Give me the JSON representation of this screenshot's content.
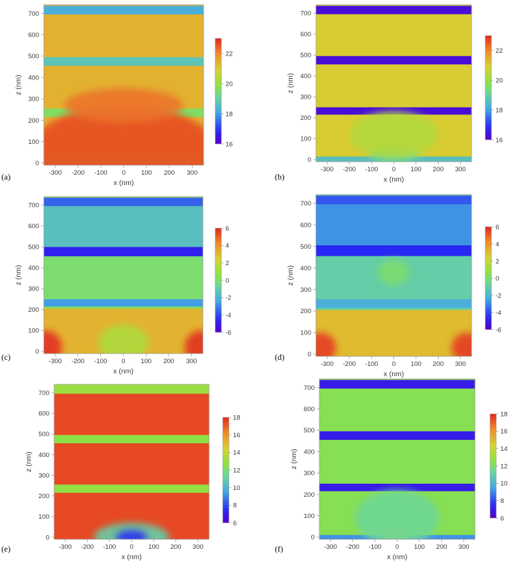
{
  "chart_data": [
    {
      "type": "heatmap",
      "panel": "(a)",
      "xlabel": "x (nm)",
      "ylabel": "z (nm)",
      "xlim": [
        -350,
        350
      ],
      "ylim": [
        -10,
        740
      ],
      "xticks": [
        -300,
        -200,
        -100,
        0,
        100,
        200,
        300
      ],
      "yticks": [
        0,
        100,
        200,
        300,
        400,
        500,
        600,
        700
      ],
      "colorbar": {
        "min": 16,
        "max": 23,
        "ticks": [
          16,
          18,
          20,
          22
        ]
      },
      "background": 21.4,
      "layers": [
        {
          "z0": 0,
          "z1": 20,
          "value": 20.4
        },
        {
          "z0": 215,
          "z1": 255,
          "value": 19.6
        },
        {
          "z0": 455,
          "z1": 495,
          "value": 18.7
        },
        {
          "z0": 695,
          "z1": 735,
          "value": 18.2
        }
      ],
      "hotspots": [
        {
          "x": 0,
          "z": 40,
          "rx": 420,
          "rz": 230,
          "value": 22.6
        },
        {
          "x": 0,
          "z": 270,
          "rx": 260,
          "rz": 80,
          "value": 22.2
        }
      ]
    },
    {
      "type": "heatmap",
      "panel": "(b)",
      "xlabel": "x (nm)",
      "ylabel": "z (nm)",
      "xlim": [
        -350,
        350
      ],
      "ylim": [
        -10,
        740
      ],
      "xticks": [
        -300,
        -200,
        -100,
        0,
        100,
        200,
        300
      ],
      "yticks": [
        0,
        100,
        200,
        300,
        400,
        500,
        600,
        700
      ],
      "colorbar": {
        "min": 16,
        "max": 23,
        "ticks": [
          16,
          18,
          20,
          22
        ]
      },
      "background": 21.0,
      "layers": [
        {
          "z0": -10,
          "z1": 15,
          "value": 18.6
        },
        {
          "z0": 215,
          "z1": 250,
          "value": 16.3
        },
        {
          "z0": 455,
          "z1": 495,
          "value": 16.3
        },
        {
          "z0": 695,
          "z1": 735,
          "value": 16.3
        }
      ],
      "hotspots": [
        {
          "x": 0,
          "z": 25,
          "rx": 110,
          "rz": 40,
          "value": 19.2
        },
        {
          "x": 0,
          "z": 120,
          "rx": 200,
          "rz": 110,
          "value": 20.4
        }
      ]
    },
    {
      "type": "heatmap",
      "panel": "(c)",
      "xlabel": "x (nm)",
      "ylabel": "z (nm)",
      "xlim": [
        -350,
        350
      ],
      "ylim": [
        -10,
        740
      ],
      "xticks": [
        -300,
        -200,
        -100,
        0,
        100,
        200,
        300
      ],
      "yticks": [
        0,
        100,
        200,
        300,
        400,
        500,
        600,
        700
      ],
      "colorbar": {
        "min": -6,
        "max": 6,
        "ticks": [
          -6,
          -4,
          -2,
          0,
          2,
          4,
          6
        ]
      },
      "background": 0.2,
      "layers": [
        {
          "z0": -10,
          "z1": 205,
          "value": 3.2
        },
        {
          "z0": 215,
          "z1": 250,
          "value": -2.6
        },
        {
          "z0": 250,
          "z1": 455,
          "value": 0.0
        },
        {
          "z0": 455,
          "z1": 500,
          "value": -4.8
        },
        {
          "z0": 500,
          "z1": 695,
          "value": -1.6
        },
        {
          "z0": 695,
          "z1": 735,
          "value": -3.6
        }
      ],
      "hotspots": [
        {
          "x": -340,
          "z": 20,
          "rx": 70,
          "rz": 80,
          "value": 5.8
        },
        {
          "x": 340,
          "z": 20,
          "rx": 70,
          "rz": 80,
          "value": 5.8
        },
        {
          "x": 0,
          "z": 40,
          "rx": 110,
          "rz": 90,
          "value": 1.4
        }
      ]
    },
    {
      "type": "heatmap",
      "panel": "(d)",
      "xlabel": "x (nm)",
      "ylabel": "z (nm)",
      "xlim": [
        -350,
        350
      ],
      "ylim": [
        -10,
        740
      ],
      "xticks": [
        -300,
        -200,
        -100,
        0,
        100,
        200,
        300
      ],
      "yticks": [
        0,
        100,
        200,
        300,
        400,
        500,
        600,
        700
      ],
      "colorbar": {
        "min": -6,
        "max": 6,
        "ticks": [
          -6,
          -4,
          -2,
          0,
          2,
          4,
          6
        ]
      },
      "background": -1.0,
      "layers": [
        {
          "z0": -10,
          "z1": 205,
          "value": 3.0
        },
        {
          "z0": 215,
          "z1": 255,
          "value": -2.2
        },
        {
          "z0": 255,
          "z1": 455,
          "value": -1.0
        },
        {
          "z0": 455,
          "z1": 505,
          "value": -4.6
        },
        {
          "z0": 505,
          "z1": 695,
          "value": -2.8
        },
        {
          "z0": 695,
          "z1": 735,
          "value": -3.8
        }
      ],
      "hotspots": [
        {
          "x": -330,
          "z": 30,
          "rx": 70,
          "rz": 70,
          "value": 5.6
        },
        {
          "x": 330,
          "z": 30,
          "rx": 70,
          "rz": 70,
          "value": 5.6
        },
        {
          "x": 0,
          "z": 380,
          "rx": 70,
          "rz": 60,
          "value": 0.0
        }
      ]
    },
    {
      "type": "heatmap",
      "panel": "(e)",
      "xlabel": "x (nm)",
      "ylabel": "z (nm)",
      "xlim": [
        -350,
        350
      ],
      "ylim": [
        -10,
        740
      ],
      "xticks": [
        -300,
        -200,
        -100,
        0,
        100,
        200,
        300
      ],
      "yticks": [
        0,
        100,
        200,
        300,
        400,
        500,
        600,
        700
      ],
      "colorbar": {
        "min": 6,
        "max": 18,
        "ticks": [
          6,
          8,
          10,
          12,
          14,
          16,
          18
        ]
      },
      "background": 17.4,
      "layers": [
        {
          "z0": 215,
          "z1": 255,
          "value": 12.8
        },
        {
          "z0": 455,
          "z1": 495,
          "value": 12.6
        },
        {
          "z0": 695,
          "z1": 740,
          "value": 13.0
        }
      ],
      "hotspots": [
        {
          "x": 0,
          "z": 0,
          "rx": 170,
          "rz": 70,
          "value": 11.0
        },
        {
          "x": 0,
          "z": 0,
          "rx": 70,
          "rz": 35,
          "value": 7.6
        }
      ]
    },
    {
      "type": "heatmap",
      "panel": "(f)",
      "xlabel": "x (nm)",
      "ylabel": "z (nm)",
      "xlim": [
        -350,
        350
      ],
      "ylim": [
        -10,
        740
      ],
      "xticks": [
        -300,
        -200,
        -100,
        0,
        100,
        200,
        300
      ],
      "yticks": [
        0,
        100,
        200,
        300,
        400,
        500,
        600,
        700
      ],
      "colorbar": {
        "min": 6,
        "max": 18,
        "ticks": [
          6,
          8,
          10,
          12,
          14,
          16,
          18
        ]
      },
      "background": 12.4,
      "layers": [
        {
          "z0": -10,
          "z1": 10,
          "value": 9.2
        },
        {
          "z0": 215,
          "z1": 250,
          "value": 7.0
        },
        {
          "z0": 455,
          "z1": 495,
          "value": 7.0
        },
        {
          "z0": 695,
          "z1": 735,
          "value": 7.0
        }
      ],
      "hotspots": [
        {
          "x": 0,
          "z": 5,
          "rx": 60,
          "rz": 25,
          "value": 15.4
        },
        {
          "x": 0,
          "z": 90,
          "rx": 190,
          "rz": 130,
          "value": 11.4
        }
      ]
    }
  ]
}
